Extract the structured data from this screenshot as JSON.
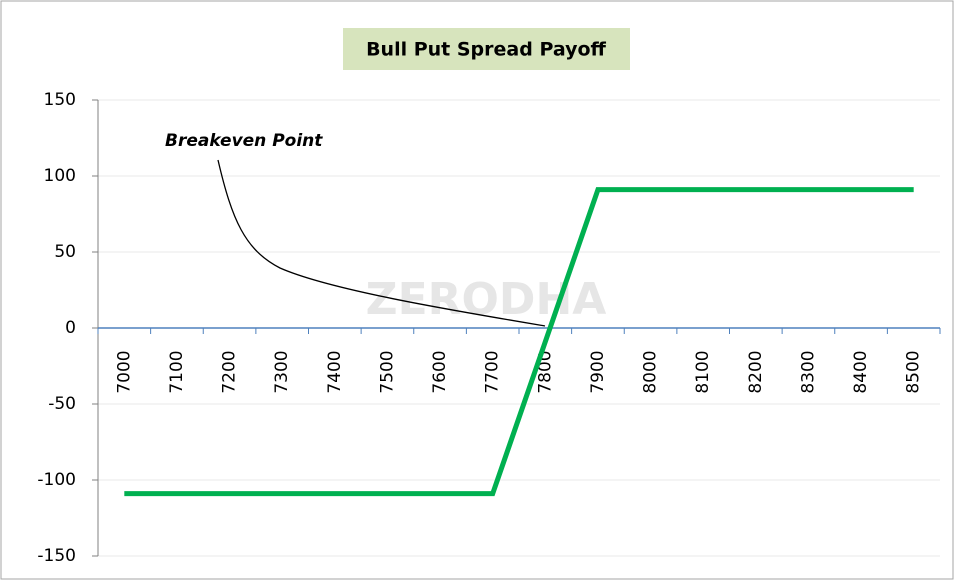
{
  "chart_data": {
    "type": "line",
    "title": "Bull Put Spread Payoff",
    "annotation": "Breakeven Point",
    "watermark": "ZERODHA",
    "categories": [
      "7000",
      "7100",
      "7200",
      "7300",
      "7400",
      "7500",
      "7600",
      "7700",
      "7800",
      "7900",
      "8000",
      "8100",
      "8200",
      "8300",
      "8400",
      "8500"
    ],
    "series": [
      {
        "name": "Payoff",
        "color": "#00b050",
        "values": [
          -109,
          -109,
          -109,
          -109,
          -109,
          -109,
          -109,
          -109,
          -9,
          91,
          91,
          91,
          91,
          91,
          91,
          91
        ]
      }
    ],
    "ylim": [
      -150,
      150
    ],
    "yticks": [
      -150,
      -100,
      -50,
      0,
      50,
      100,
      150
    ],
    "grid": true
  }
}
